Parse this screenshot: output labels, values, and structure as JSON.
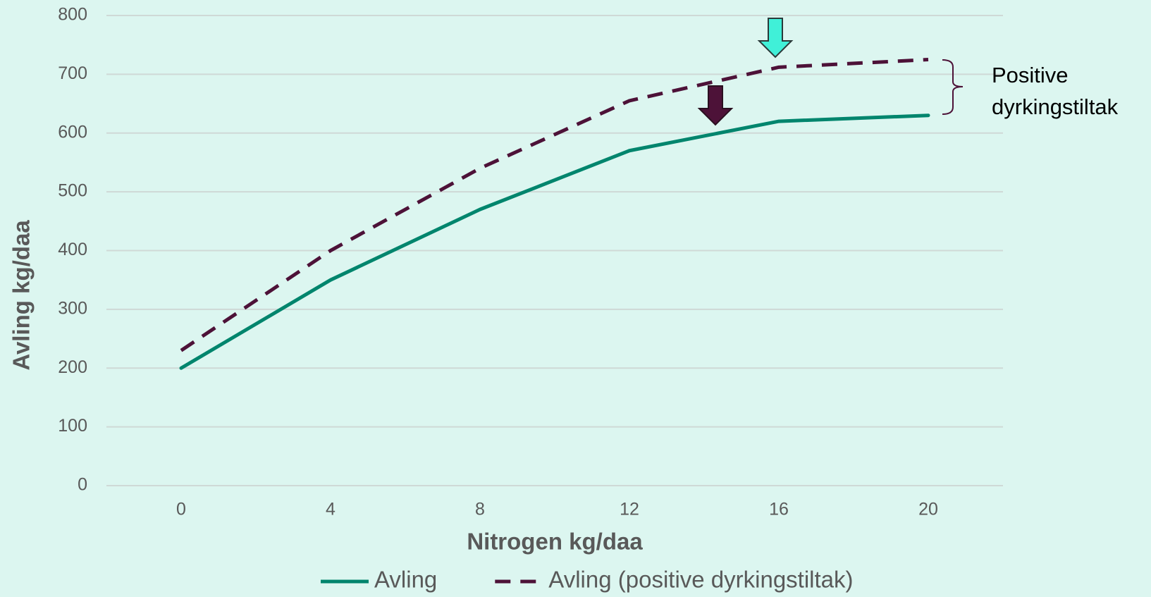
{
  "chart_data": {
    "type": "line",
    "xlabel": "Nitrogen kg/daa",
    "ylabel": "Avling kg/daa",
    "categories": [
      "0",
      "4",
      "8",
      "12",
      "16",
      "20"
    ],
    "series": [
      {
        "name": "Avling",
        "color": "#00856d",
        "dash": false,
        "values": [
          200,
          350,
          470,
          570,
          620,
          630
        ]
      },
      {
        "name": "Avling (positive dyrkingstiltak)",
        "color": "#4d1238",
        "dash": true,
        "values": [
          230,
          400,
          540,
          655,
          712,
          725
        ]
      }
    ],
    "ylim": [
      0,
      800
    ],
    "yticks": [
      0,
      100,
      200,
      300,
      400,
      500,
      600,
      700,
      800
    ],
    "grid": true,
    "legend": "bottom",
    "annotation_lines": [
      "Positive",
      "dyrkingstiltak"
    ]
  }
}
